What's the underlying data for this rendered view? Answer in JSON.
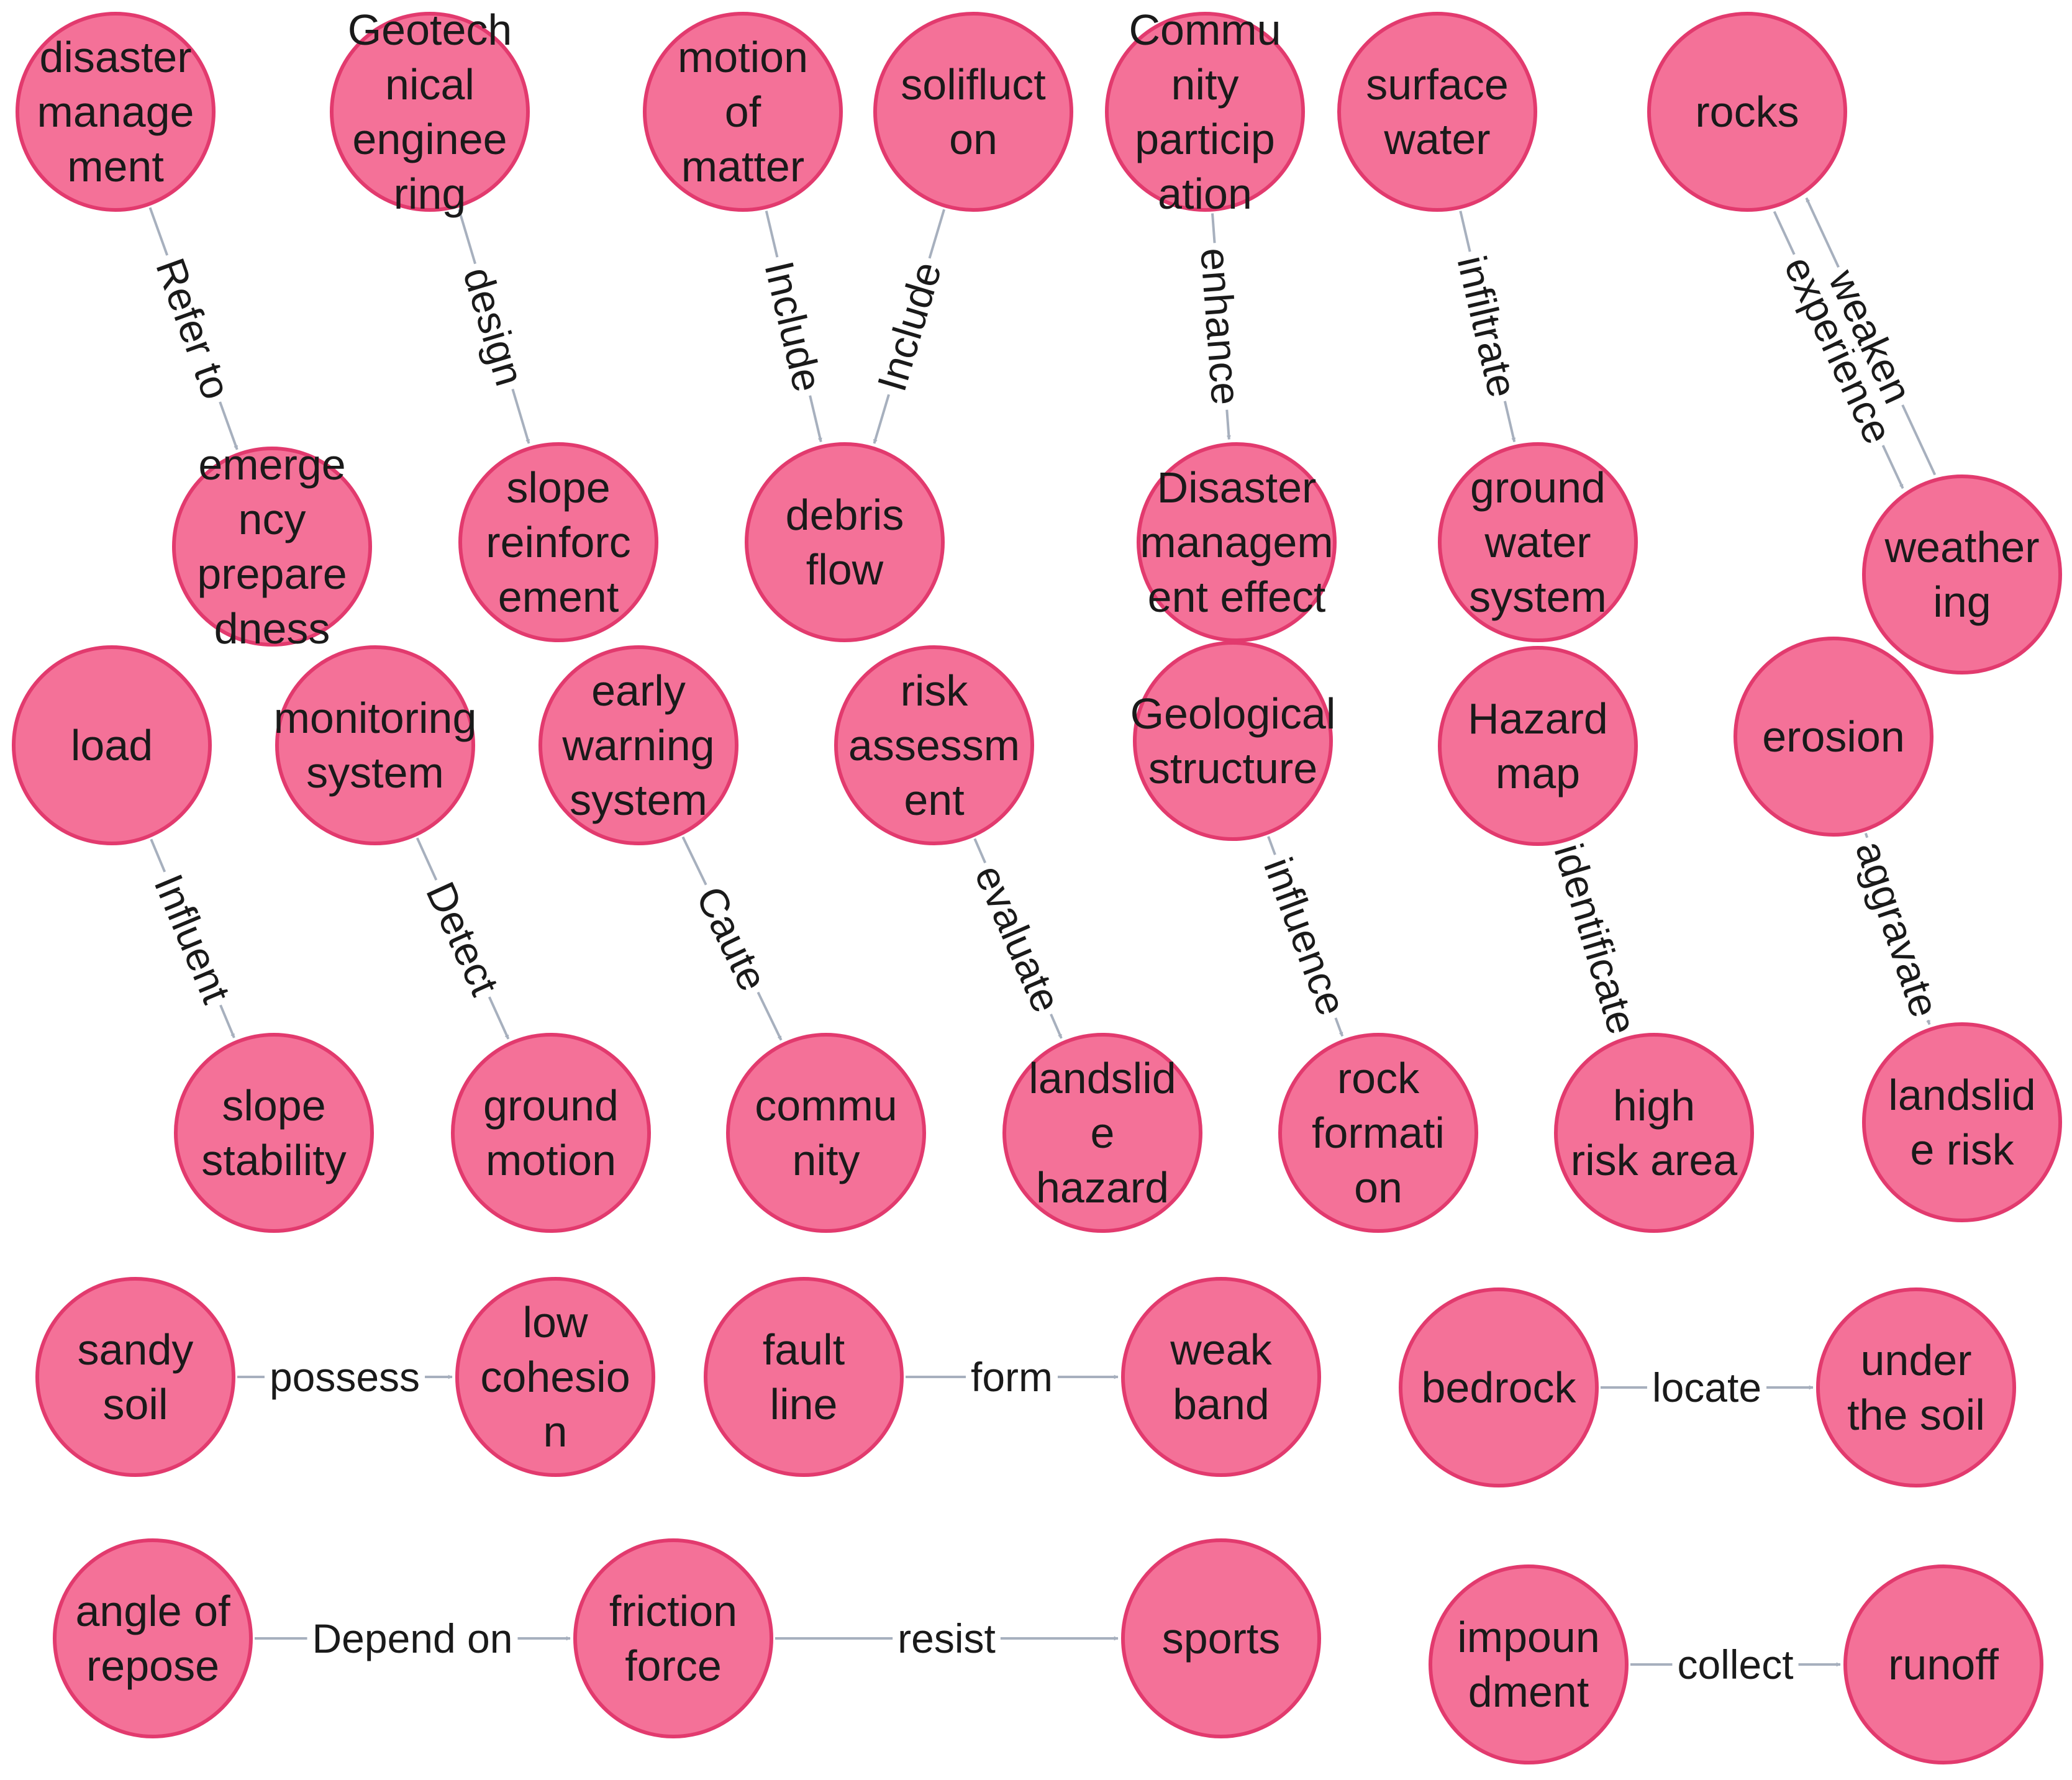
{
  "colors": {
    "node_fill": "#f47198",
    "node_stroke": "#e23a6e",
    "edge": "#a7b0be",
    "text": "#1a1a1a"
  },
  "nodes": [
    {
      "id": "disaster_management",
      "lines": [
        "disaster",
        "manage",
        "ment"
      ]
    },
    {
      "id": "geotechnical_engineering",
      "lines": [
        "Geotech",
        "nical",
        "enginee",
        "ring"
      ]
    },
    {
      "id": "motion_of_matter",
      "lines": [
        "motion",
        "of",
        "matter"
      ]
    },
    {
      "id": "solifluction",
      "lines": [
        "solifluct",
        "on"
      ]
    },
    {
      "id": "community_participation",
      "lines": [
        "Commu",
        "nity",
        "particip",
        "ation"
      ]
    },
    {
      "id": "surface_water",
      "lines": [
        "surface",
        "water"
      ]
    },
    {
      "id": "rocks",
      "lines": [
        "rocks"
      ]
    },
    {
      "id": "emergency_preparedness",
      "lines": [
        "emerge",
        "ncy",
        "prepare",
        "dness"
      ]
    },
    {
      "id": "slope_reinforcement",
      "lines": [
        "slope",
        "reinforc",
        "ement"
      ]
    },
    {
      "id": "debris_flow",
      "lines": [
        "debris",
        "flow"
      ]
    },
    {
      "id": "disaster_management_effect",
      "lines": [
        "Disaster",
        "managem",
        "ent effect"
      ]
    },
    {
      "id": "ground_water_system",
      "lines": [
        "ground",
        "water",
        "system"
      ]
    },
    {
      "id": "weathering",
      "lines": [
        "weather",
        "ing"
      ]
    },
    {
      "id": "load",
      "lines": [
        "load"
      ]
    },
    {
      "id": "monitoring_system",
      "lines": [
        "monitoring",
        "system"
      ]
    },
    {
      "id": "early_warning_system",
      "lines": [
        "early",
        "warning",
        "system"
      ]
    },
    {
      "id": "risk_assessment",
      "lines": [
        "risk",
        "assessm",
        "ent"
      ]
    },
    {
      "id": "geological_structure",
      "lines": [
        "Geological",
        "structure"
      ]
    },
    {
      "id": "hazard_map",
      "lines": [
        "Hazard",
        "map"
      ]
    },
    {
      "id": "erosion",
      "lines": [
        "erosion"
      ]
    },
    {
      "id": "slope_stability",
      "lines": [
        "slope",
        "stability"
      ]
    },
    {
      "id": "ground_motion",
      "lines": [
        "ground",
        "motion"
      ]
    },
    {
      "id": "community",
      "lines": [
        "commu",
        "nity"
      ]
    },
    {
      "id": "landslide_hazard",
      "lines": [
        "landslid",
        "e",
        "hazard"
      ]
    },
    {
      "id": "rock_formation",
      "lines": [
        "rock",
        "formati",
        "on"
      ]
    },
    {
      "id": "high_risk_area",
      "lines": [
        "high",
        "risk area"
      ]
    },
    {
      "id": "landslide_risk",
      "lines": [
        "landslid",
        "e risk"
      ]
    },
    {
      "id": "sandy_soil",
      "lines": [
        "sandy",
        "soil"
      ]
    },
    {
      "id": "low_cohesion",
      "lines": [
        "low",
        "cohesio",
        "n"
      ]
    },
    {
      "id": "fault_line",
      "lines": [
        "fault",
        "line"
      ]
    },
    {
      "id": "weak_band",
      "lines": [
        "weak",
        "band"
      ]
    },
    {
      "id": "bedrock",
      "lines": [
        "bedrock"
      ]
    },
    {
      "id": "under_the_soil",
      "lines": [
        "under",
        "the soil"
      ]
    },
    {
      "id": "angle_of_repose",
      "lines": [
        "angle of",
        "repose"
      ]
    },
    {
      "id": "friction_force",
      "lines": [
        "friction",
        "force"
      ]
    },
    {
      "id": "sports",
      "lines": [
        "sports"
      ]
    },
    {
      "id": "impoundment",
      "lines": [
        "impoun",
        "dment"
      ]
    },
    {
      "id": "runoff",
      "lines": [
        "runoff"
      ]
    }
  ],
  "edges": [
    {
      "source": "disaster_management",
      "target": "emergency_preparedness",
      "label": "Refer to"
    },
    {
      "source": "geotechnical_engineering",
      "target": "slope_reinforcement",
      "label": "design"
    },
    {
      "source": "motion_of_matter",
      "target": "debris_flow",
      "label": "Include"
    },
    {
      "source": "solifluction",
      "target": "debris_flow",
      "label": "Include"
    },
    {
      "source": "community_participation",
      "target": "disaster_management_effect",
      "label": "enhance"
    },
    {
      "source": "surface_water",
      "target": "ground_water_system",
      "label": "infiltrate"
    },
    {
      "source": "rocks",
      "target": "weathering",
      "label": "experience"
    },
    {
      "source": "weathering",
      "target": "rocks",
      "label": "weaken"
    },
    {
      "source": "load",
      "target": "slope_stability",
      "label": "Influent"
    },
    {
      "source": "monitoring_system",
      "target": "ground_motion",
      "label": "Detect"
    },
    {
      "source": "early_warning_system",
      "target": "community",
      "label": "Caute"
    },
    {
      "source": "risk_assessment",
      "target": "landslide_hazard",
      "label": "evaluate"
    },
    {
      "source": "geological_structure",
      "target": "rock_formation",
      "label": "influence"
    },
    {
      "source": "hazard_map",
      "target": "high_risk_area",
      "label": "identificate"
    },
    {
      "source": "erosion",
      "target": "landslide_risk",
      "label": "aggravate"
    },
    {
      "source": "sandy_soil",
      "target": "low_cohesion",
      "label": "possess"
    },
    {
      "source": "fault_line",
      "target": "weak_band",
      "label": "form"
    },
    {
      "source": "bedrock",
      "target": "under_the_soil",
      "label": "locate"
    },
    {
      "source": "angle_of_repose",
      "target": "friction_force",
      "label": "Depend on"
    },
    {
      "source": "friction_force",
      "target": "sports",
      "label": "resist"
    },
    {
      "source": "impoundment",
      "target": "runoff",
      "label": "collect"
    }
  ]
}
